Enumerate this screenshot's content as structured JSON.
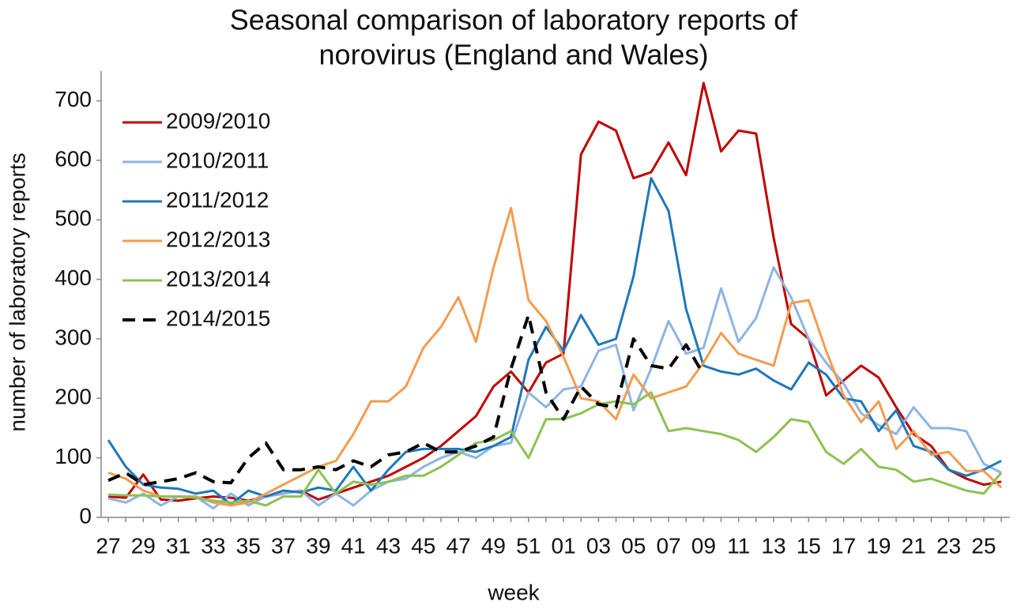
{
  "chart_data": {
    "type": "line",
    "title": "Seasonal comparison of laboratory reports of",
    "subtitle": "norovirus (England and Wales)",
    "x_label": "week",
    "y_label": "number of laboratory reports",
    "categories": [
      "27",
      null,
      "29",
      null,
      "31",
      null,
      "33",
      null,
      "35",
      null,
      "37",
      null,
      "39",
      null,
      "41",
      null,
      "43",
      null,
      "45",
      null,
      "47",
      null,
      "49",
      null,
      "51",
      null,
      "01",
      null,
      "03",
      null,
      "05",
      null,
      "07",
      null,
      "09",
      null,
      "11",
      null,
      "13",
      null,
      "15",
      null,
      "17",
      null,
      "19",
      null,
      "21",
      null,
      "23",
      null,
      "25",
      null
    ],
    "ylim": [
      0,
      750
    ],
    "yticks": [
      0,
      100,
      200,
      300,
      400,
      500,
      600,
      700
    ],
    "grid": false,
    "legend": "upper-left",
    "series": [
      {
        "name": "2009/2010",
        "color": "#c00000",
        "dashed": false,
        "values": [
          35,
          33,
          72,
          30,
          28,
          32,
          35,
          33,
          28,
          35,
          40,
          45,
          30,
          40,
          50,
          60,
          70,
          85,
          100,
          120,
          145,
          170,
          220,
          245,
          210,
          260,
          275,
          610,
          665,
          650,
          570,
          580,
          630,
          575,
          730,
          615,
          650,
          645,
          470,
          325,
          300,
          205,
          230,
          255,
          235,
          185,
          140,
          120,
          80,
          65,
          55,
          60
        ]
      },
      {
        "name": "2010/2011",
        "color": "#8fb4e3",
        "dashed": false,
        "values": [
          32,
          25,
          40,
          20,
          35,
          35,
          15,
          40,
          20,
          35,
          40,
          45,
          20,
          40,
          20,
          45,
          60,
          65,
          85,
          100,
          110,
          100,
          120,
          125,
          210,
          185,
          215,
          220,
          280,
          290,
          180,
          250,
          330,
          275,
          285,
          385,
          295,
          335,
          420,
          370,
          300,
          260,
          225,
          175,
          155,
          140,
          185,
          150,
          150,
          145,
          90,
          75
        ]
      },
      {
        "name": "2011/2012",
        "color": "#1f77b9",
        "dashed": false,
        "values": [
          130,
          85,
          55,
          50,
          48,
          40,
          45,
          22,
          45,
          35,
          45,
          42,
          50,
          45,
          85,
          45,
          80,
          110,
          115,
          115,
          115,
          110,
          120,
          135,
          265,
          320,
          280,
          340,
          290,
          300,
          405,
          570,
          515,
          350,
          255,
          245,
          240,
          250,
          230,
          215,
          260,
          240,
          200,
          195,
          145,
          180,
          120,
          110,
          80,
          70,
          80,
          95
        ]
      },
      {
        "name": "2012/2013",
        "color": "#f39c4f",
        "dashed": false,
        "values": [
          75,
          65,
          45,
          35,
          35,
          35,
          25,
          20,
          25,
          40,
          55,
          70,
          85,
          95,
          140,
          195,
          195,
          220,
          285,
          320,
          370,
          295,
          420,
          520,
          365,
          330,
          270,
          200,
          195,
          165,
          240,
          200,
          210,
          220,
          260,
          310,
          275,
          265,
          255,
          360,
          365,
          280,
          205,
          160,
          195,
          115,
          145,
          105,
          110,
          78,
          78,
          50
        ]
      },
      {
        "name": "2013/2014",
        "color": "#8dc153",
        "dashed": false,
        "values": [
          38,
          37,
          37,
          35,
          35,
          33,
          28,
          25,
          28,
          20,
          35,
          35,
          80,
          40,
          60,
          55,
          60,
          70,
          70,
          85,
          105,
          125,
          130,
          145,
          100,
          165,
          165,
          175,
          190,
          195,
          190,
          210,
          145,
          150,
          145,
          140,
          130,
          110,
          135,
          165,
          160,
          110,
          90,
          115,
          85,
          80,
          60,
          65,
          55,
          45,
          40,
          75
        ]
      },
      {
        "name": "2014/2015",
        "color": "#000000",
        "dashed": true,
        "values": [
          62,
          75,
          55,
          60,
          65,
          75,
          60,
          58,
          100,
          125,
          80,
          80,
          85,
          80,
          95,
          85,
          105,
          110,
          125,
          110,
          110,
          120,
          135,
          250,
          340,
          210,
          165,
          220,
          190,
          185,
          300,
          255,
          250,
          290,
          240,
          null,
          null,
          null,
          null,
          null,
          null,
          null,
          null,
          null,
          null,
          null,
          null,
          null,
          null,
          null,
          null,
          null
        ]
      }
    ]
  }
}
